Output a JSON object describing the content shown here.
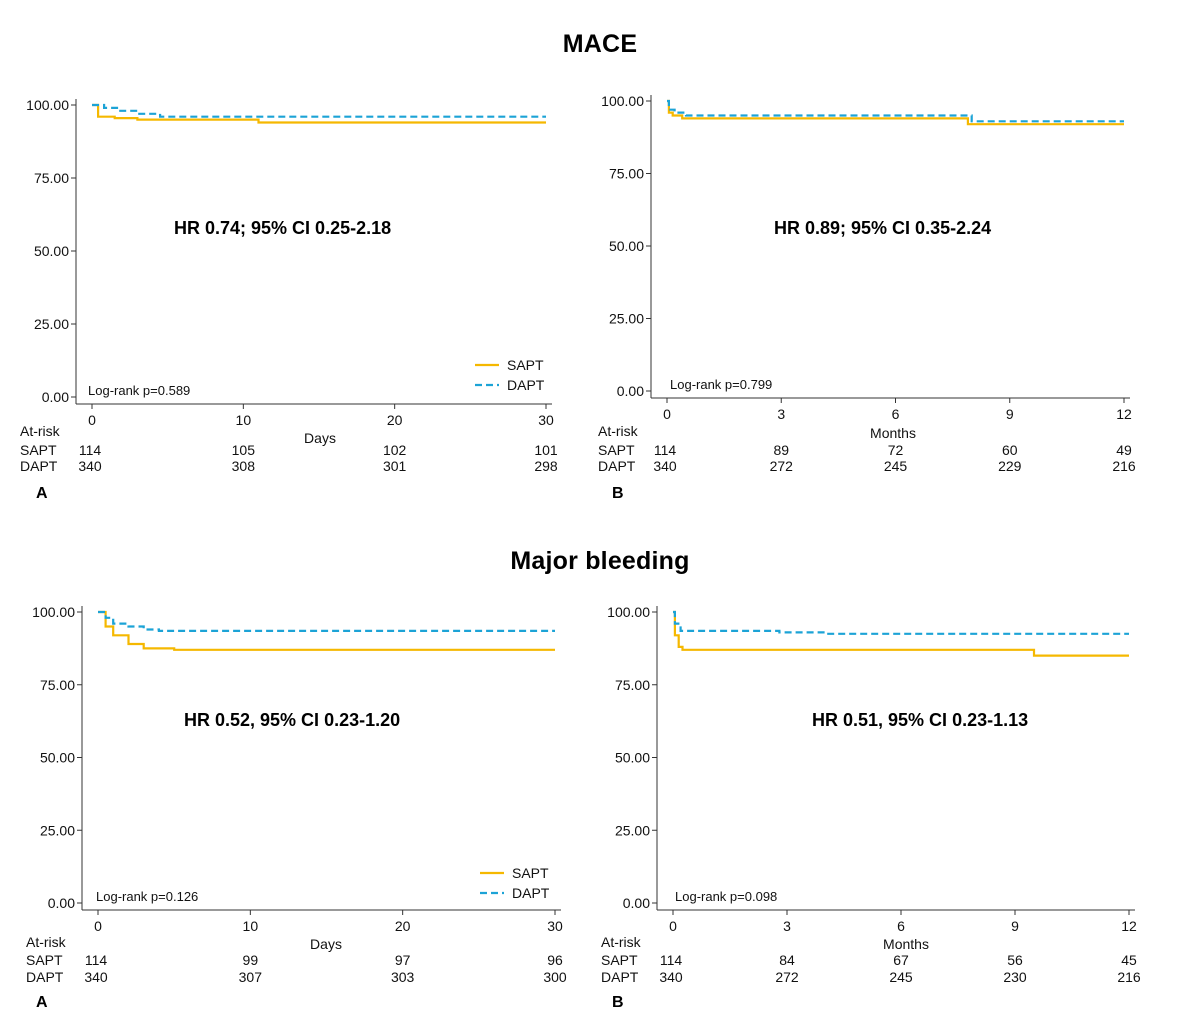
{
  "sections": {
    "mace_title": "MACE",
    "bleeding_title": "Major bleeding"
  },
  "colors": {
    "sapt": "#f5b800",
    "dapt": "#1ca3d6"
  },
  "chart_data": [
    {
      "type": "line",
      "panel": "A",
      "section": "MACE",
      "xlabel": "Days",
      "ylabel": "",
      "xlim": [
        0,
        30
      ],
      "ylim": [
        0,
        100
      ],
      "xticks": [
        0,
        10,
        20,
        30
      ],
      "yticks": [
        "0.00",
        "25.00",
        "50.00",
        "75.00",
        "100.00"
      ],
      "hr_text": "HR 0.74; 95% CI 0.25-2.18",
      "logrank": "Log-rank p=0.589",
      "legend": [
        "SAPT",
        "DAPT"
      ],
      "legend_position": "bottom-right",
      "series": [
        {
          "name": "SAPT",
          "style": "solid",
          "x": [
            0,
            0.4,
            0.4,
            1.5,
            1.5,
            3,
            3,
            11,
            11,
            30
          ],
          "y": [
            100,
            100,
            96,
            96,
            95.5,
            95.5,
            95,
            95,
            94,
            94
          ]
        },
        {
          "name": "DAPT",
          "style": "dashed",
          "x": [
            0,
            0.8,
            0.8,
            1.8,
            1.8,
            3,
            3,
            4.5,
            4.5,
            30
          ],
          "y": [
            100,
            100,
            99,
            99,
            98,
            98,
            97,
            97,
            96,
            96
          ]
        }
      ],
      "at_risk": {
        "label": "At-risk",
        "rows": [
          {
            "name": "SAPT",
            "values": [
              114,
              105,
              102,
              101
            ]
          },
          {
            "name": "DAPT",
            "values": [
              340,
              308,
              301,
              298
            ]
          }
        ]
      }
    },
    {
      "type": "line",
      "panel": "B",
      "section": "MACE",
      "xlabel": "Months",
      "ylabel": "",
      "xlim": [
        0,
        12
      ],
      "ylim": [
        0,
        100
      ],
      "xticks": [
        0,
        3,
        6,
        9,
        12
      ],
      "yticks": [
        "0.00",
        "25.00",
        "50.00",
        "75.00",
        "100.00"
      ],
      "hr_text": "HR 0.89; 95% CI 0.35-2.24",
      "logrank": "Log-rank p=0.799",
      "legend": [],
      "series": [
        {
          "name": "SAPT",
          "style": "solid",
          "x": [
            0,
            0.05,
            0.05,
            0.15,
            0.15,
            0.4,
            0.4,
            7.9,
            7.9,
            12
          ],
          "y": [
            100,
            100,
            96,
            96,
            95,
            95,
            94,
            94,
            92,
            92
          ]
        },
        {
          "name": "DAPT",
          "style": "dashed",
          "x": [
            0,
            0.05,
            0.05,
            0.2,
            0.2,
            0.5,
            0.5,
            8,
            8,
            12
          ],
          "y": [
            100,
            100,
            97,
            97,
            96,
            96,
            95,
            95,
            93,
            93
          ]
        }
      ],
      "at_risk": {
        "label": "At-risk",
        "rows": [
          {
            "name": "SAPT",
            "values": [
              114,
              89,
              72,
              60,
              49
            ]
          },
          {
            "name": "DAPT",
            "values": [
              340,
              272,
              245,
              229,
              216
            ]
          }
        ]
      }
    },
    {
      "type": "line",
      "panel": "A",
      "section": "Major bleeding",
      "xlabel": "Days",
      "ylabel": "",
      "xlim": [
        0,
        30
      ],
      "ylim": [
        0,
        100
      ],
      "xticks": [
        0,
        10,
        20,
        30
      ],
      "yticks": [
        "0.00",
        "25.00",
        "50.00",
        "75.00",
        "100.00"
      ],
      "hr_text": "HR 0.52, 95% CI 0.23-1.20",
      "logrank": "Log-rank p=0.126",
      "legend": [
        "SAPT",
        "DAPT"
      ],
      "legend_position": "bottom-right",
      "series": [
        {
          "name": "SAPT",
          "style": "solid",
          "x": [
            0,
            0.5,
            0.5,
            1,
            1,
            2,
            2,
            3,
            3,
            5,
            5,
            30
          ],
          "y": [
            100,
            100,
            95,
            95,
            92,
            92,
            89,
            89,
            87.5,
            87.5,
            87,
            87
          ]
        },
        {
          "name": "DAPT",
          "style": "dashed",
          "x": [
            0,
            0.5,
            0.5,
            1,
            1,
            2,
            2,
            3,
            3,
            4,
            4,
            30
          ],
          "y": [
            100,
            100,
            98,
            98,
            96,
            96,
            95,
            95,
            94,
            94,
            93.5,
            93.5
          ]
        }
      ],
      "at_risk": {
        "label": "At-risk",
        "rows": [
          {
            "name": "SAPT",
            "values": [
              114,
              99,
              97,
              96
            ]
          },
          {
            "name": "DAPT",
            "values": [
              340,
              307,
              303,
              300
            ]
          }
        ]
      }
    },
    {
      "type": "line",
      "panel": "B",
      "section": "Major bleeding",
      "xlabel": "Months",
      "ylabel": "",
      "xlim": [
        0,
        12
      ],
      "ylim": [
        0,
        100
      ],
      "xticks": [
        0,
        3,
        6,
        9,
        12
      ],
      "yticks": [
        "0.00",
        "25.00",
        "50.00",
        "75.00",
        "100.00"
      ],
      "hr_text": "HR 0.51, 95% CI 0.23-1.13",
      "logrank": "Log-rank p=0.098",
      "legend": [],
      "series": [
        {
          "name": "SAPT",
          "style": "solid",
          "x": [
            0,
            0.05,
            0.05,
            0.15,
            0.15,
            0.25,
            0.25,
            9.5,
            9.5,
            12
          ],
          "y": [
            100,
            100,
            92,
            92,
            88,
            88,
            87,
            87,
            85,
            85
          ]
        },
        {
          "name": "DAPT",
          "style": "dashed",
          "x": [
            0,
            0.05,
            0.05,
            0.2,
            0.2,
            2.8,
            2.8,
            4,
            4,
            12
          ],
          "y": [
            100,
            100,
            96,
            96,
            93.5,
            93.5,
            93,
            93,
            92.5,
            92.5
          ]
        }
      ],
      "at_risk": {
        "label": "At-risk",
        "rows": [
          {
            "name": "SAPT",
            "values": [
              114,
              84,
              67,
              56,
              45
            ]
          },
          {
            "name": "DAPT",
            "values": [
              340,
              272,
              245,
              230,
              216
            ]
          }
        ]
      }
    }
  ]
}
